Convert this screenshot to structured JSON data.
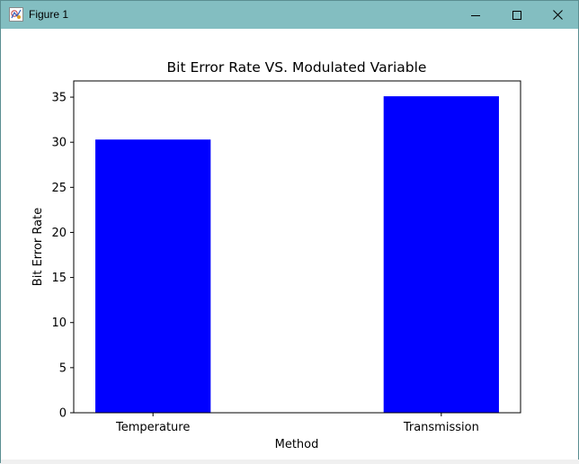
{
  "window": {
    "title": "Figure 1",
    "icon": "matplotlib-figure-icon",
    "controls": {
      "minimize": "minimize-icon",
      "maximize": "maximize-icon",
      "close": "close-icon"
    },
    "titlebar_color": "#83bec1"
  },
  "chart_data": {
    "type": "bar",
    "title": "Bit Error Rate VS. Modulated Variable",
    "xlabel": "Method",
    "ylabel": "Bit Error Rate",
    "categories": [
      "Temperature",
      "Transmission"
    ],
    "values": [
      30.3,
      35.1
    ],
    "ylim": [
      0,
      36.8
    ],
    "yticks": [
      0,
      5,
      10,
      15,
      20,
      25,
      30,
      35
    ],
    "bar_color": "#0000ff",
    "grid": false,
    "legend": "none"
  }
}
